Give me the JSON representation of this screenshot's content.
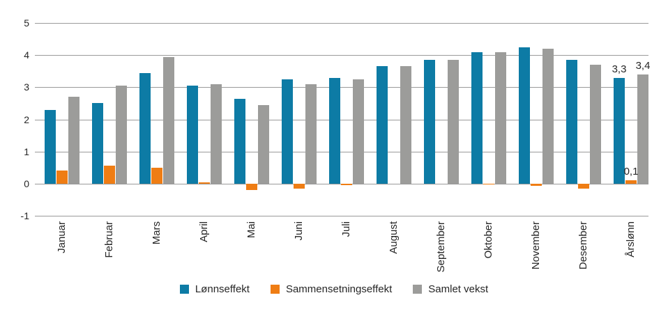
{
  "figure": {
    "background": "#ffffff",
    "text_color": "#262626",
    "grid_color": "#9a9a9a"
  },
  "chart_data": {
    "type": "bar",
    "title": "",
    "xlabel": "",
    "ylabel": "",
    "categories": [
      "Januar",
      "Februar",
      "Mars",
      "April",
      "Mai",
      "Juni",
      "Juli",
      "August",
      "September",
      "Oktober",
      "November",
      "Desember",
      "Årslønn"
    ],
    "series": [
      {
        "name": "Lønnseffekt",
        "color": "#0d7ba5",
        "values": [
          2.3,
          2.5,
          3.45,
          3.05,
          2.65,
          3.25,
          3.3,
          3.65,
          3.85,
          4.1,
          4.25,
          3.85,
          3.3
        ]
      },
      {
        "name": "Sammensetningseffekt",
        "color": "#ef7d14",
        "values": [
          0.4,
          0.55,
          0.5,
          0.05,
          -0.2,
          -0.15,
          -0.05,
          0,
          0,
          -0.03,
          -0.07,
          -0.15,
          0.1
        ]
      },
      {
        "name": "Samlet vekst",
        "color": "#9c9c9a",
        "values": [
          2.7,
          3.05,
          3.95,
          3.1,
          2.45,
          3.1,
          3.25,
          3.65,
          3.85,
          4.1,
          4.2,
          3.7,
          3.4
        ]
      }
    ],
    "ylim": [
      -1,
      5
    ],
    "yticks": [
      5,
      4,
      3,
      2,
      1,
      0,
      -1
    ],
    "grid": true,
    "x_tick_rotation": 90,
    "legend_position": "bottom",
    "data_labels": [
      {
        "category": "Årslønn",
        "series": "Lønnseffekt",
        "text": "3,3"
      },
      {
        "category": "Årslønn",
        "series": "Sammensetningseffekt",
        "text": "0,1"
      },
      {
        "category": "Årslønn",
        "series": "Samlet vekst",
        "text": "3,4"
      }
    ]
  }
}
